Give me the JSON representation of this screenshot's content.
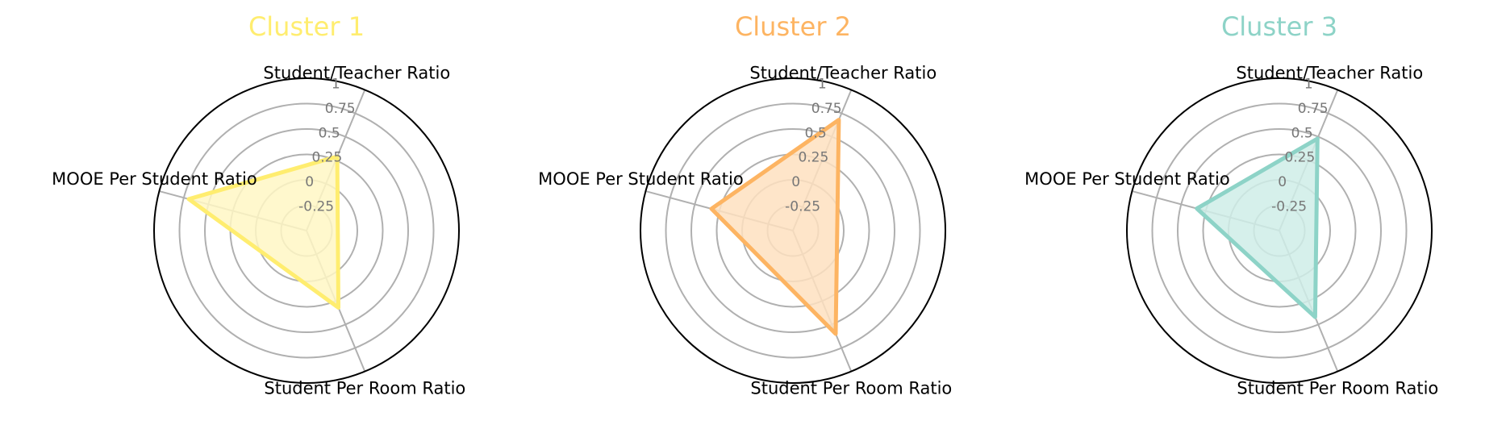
{
  "chart_data": {
    "type": "radar",
    "axes": [
      "Student/Teacher Ratio",
      "MOOE Per Student Ratio",
      "Student Per Room Ratio"
    ],
    "ticks": [
      -0.25,
      0,
      0.25,
      0.5,
      0.75,
      1
    ],
    "tick_labels": [
      "-0.25",
      "0",
      "0.25",
      "0.5",
      "0.75",
      "1"
    ],
    "rlim": [
      -0.5,
      1.0
    ],
    "grid": true,
    "panels": [
      {
        "title": "Cluster 1",
        "color": "#FFED6F",
        "fill": "#FFF7C4",
        "values": [
          0.29,
          0.7,
          0.32
        ]
      },
      {
        "title": "Cluster 2",
        "color": "#FDB462",
        "fill": "#FEE0BF",
        "values": [
          0.68,
          0.33,
          0.6
        ]
      },
      {
        "title": "Cluster 3",
        "color": "#8DD3C7",
        "fill": "#CFEDE8",
        "values": [
          0.48,
          0.34,
          0.42
        ]
      }
    ]
  }
}
